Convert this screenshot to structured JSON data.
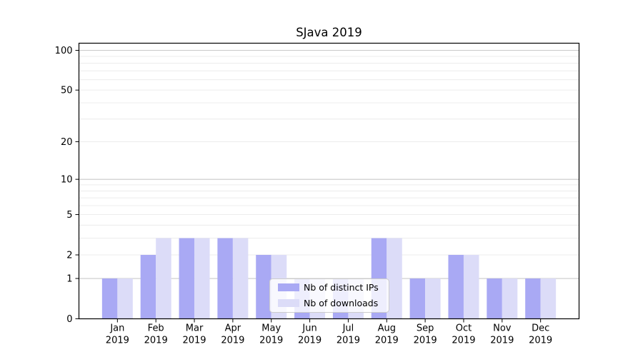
{
  "chart_data": {
    "type": "bar",
    "title": "SJava 2019",
    "categories": [
      "Jan",
      "Feb",
      "Mar",
      "Apr",
      "May",
      "Jun",
      "Jul",
      "Aug",
      "Sep",
      "Oct",
      "Nov",
      "Dec"
    ],
    "category_year": "2019",
    "series": [
      {
        "name": "Nb of distinct IPs",
        "color": "#a9a9f4",
        "values": [
          1,
          2,
          3,
          3,
          2,
          1,
          1,
          3,
          1,
          2,
          1,
          1
        ]
      },
      {
        "name": "Nb of downloads",
        "color": "#dcdcf8",
        "values": [
          1,
          3,
          3,
          3,
          2,
          1,
          1,
          3,
          1,
          2,
          1,
          1
        ]
      }
    ],
    "xlabel": "",
    "ylabel": "",
    "yscale": "log1p",
    "ylim": [
      0,
      113
    ],
    "yticks": [
      0,
      1,
      2,
      5,
      10,
      20,
      50,
      100
    ],
    "major_gridlines": [
      1,
      10,
      100
    ],
    "minor_gridlines": [
      2,
      3,
      4,
      5,
      6,
      7,
      8,
      9,
      20,
      30,
      40,
      50,
      60,
      70,
      80,
      90
    ],
    "grid": true,
    "legend": {
      "position": "lower center",
      "entries": [
        "Nb of distinct IPs",
        "Nb of downloads"
      ]
    }
  },
  "colors": {
    "axis": "#000000",
    "major_grid": "#c9c9c9",
    "minor_grid": "#ececec",
    "legend_border": "#cccccc",
    "tick_label": "#000000"
  }
}
